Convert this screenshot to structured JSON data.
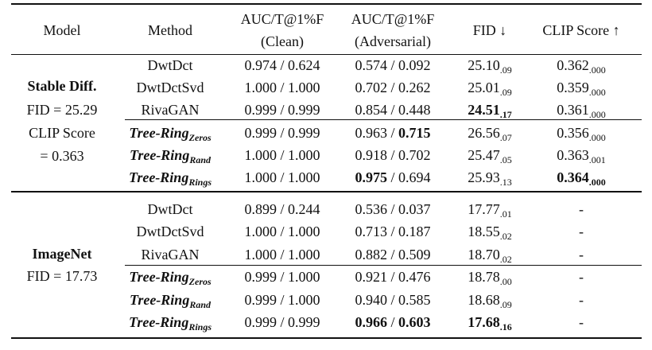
{
  "header": {
    "model": "Model",
    "method": "Method",
    "auc_clean": [
      "AUC/T@1%F",
      "(Clean)"
    ],
    "auc_adv": [
      "AUC/T@1%F",
      "(Adversarial)"
    ],
    "fid": "FID ↓",
    "clip": "CLIP Score ↑"
  },
  "groups": [
    {
      "label_lines": [
        "Stable Diff.",
        "FID = 25.29",
        "CLIP Score",
        "= 0.363"
      ],
      "rows": [
        {
          "method": "DwtDct",
          "sub": "",
          "clean": "0.974 / 0.624",
          "adv": "0.574 / 0.092",
          "fid": "25.10",
          "fid_sub": ".09",
          "clip": "0.362",
          "clip_sub": ".000"
        },
        {
          "method": "DwtDctSvd",
          "sub": "",
          "clean": "1.000 / 1.000",
          "adv": "0.702 / 0.262",
          "fid": "25.01",
          "fid_sub": ".09",
          "clip": "0.359",
          "clip_sub": ".000"
        },
        {
          "method": "RivaGAN",
          "sub": "",
          "clean": "0.999 / 0.999",
          "adv": "0.854 / 0.448",
          "fid": "24.51",
          "fid_sub": ".17",
          "clip": "0.361",
          "clip_sub": ".000"
        },
        {
          "method": "Tree-Ring",
          "sub": "Zeros",
          "clean": "0.999 / 0.999",
          "adv_a": "0.963",
          "adv_b": "0.715",
          "fid": "26.56",
          "fid_sub": ".07",
          "clip": "0.356",
          "clip_sub": ".000"
        },
        {
          "method": "Tree-Ring",
          "sub": "Rand",
          "clean": "1.000 / 1.000",
          "adv": "0.918 / 0.702",
          "fid": "25.47",
          "fid_sub": ".05",
          "clip": "0.363",
          "clip_sub": ".001"
        },
        {
          "method": "Tree-Ring",
          "sub": "Rings",
          "clean": "1.000 / 1.000",
          "adv_a": "0.975",
          "adv_b": "0.694",
          "fid": "25.93",
          "fid_sub": ".13",
          "clip": "0.364",
          "clip_sub": ".000"
        }
      ]
    },
    {
      "label_lines": [
        "ImageNet",
        "FID = 17.73"
      ],
      "rows": [
        {
          "method": "DwtDct",
          "sub": "",
          "clean": "0.899 / 0.244",
          "adv": "0.536 / 0.037",
          "fid": "17.77",
          "fid_sub": ".01",
          "clip": "-"
        },
        {
          "method": "DwtDctSvd",
          "sub": "",
          "clean": "1.000 / 1.000",
          "adv": "0.713 / 0.187",
          "fid": "18.55",
          "fid_sub": ".02",
          "clip": "-"
        },
        {
          "method": "RivaGAN",
          "sub": "",
          "clean": "1.000 / 1.000",
          "adv": "0.882 / 0.509",
          "fid": "18.70",
          "fid_sub": ".02",
          "clip": "-"
        },
        {
          "method": "Tree-Ring",
          "sub": "Zeros",
          "clean": "0.999 / 1.000",
          "adv": "0.921 / 0.476",
          "fid": "18.78",
          "fid_sub": ".00",
          "clip": "-"
        },
        {
          "method": "Tree-Ring",
          "sub": "Rand",
          "clean": "0.999 / 1.000",
          "adv": "0.940 / 0.585",
          "fid": "18.68",
          "fid_sub": ".09",
          "clip": "-"
        },
        {
          "method": "Tree-Ring",
          "sub": "Rings",
          "clean": "0.999 / 0.999",
          "adv_a": "0.966",
          "adv_b": "0.603",
          "fid": "17.68",
          "fid_sub": ".16",
          "clip": "-"
        }
      ]
    }
  ]
}
